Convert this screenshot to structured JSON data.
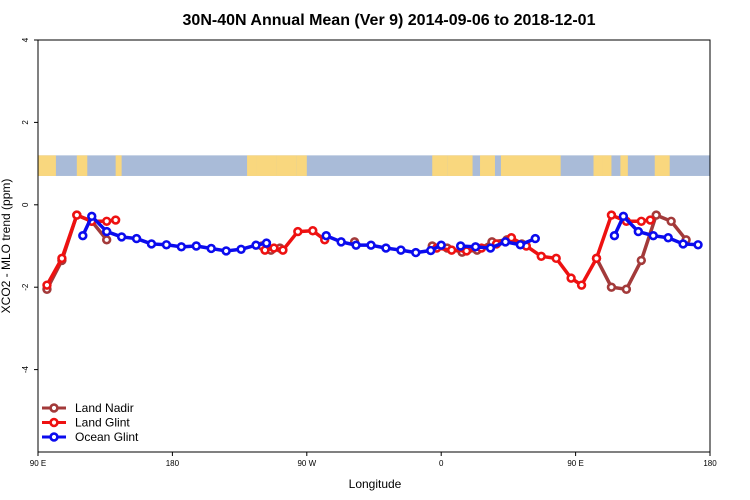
{
  "chart_data": {
    "type": "line",
    "title": "30N-40N Annual Mean (Ver 9)   2014-09-06 to 2018-12-01",
    "xlabel": "Longitude",
    "ylabel": "XCO2 - MLO trend (ppm)",
    "xlim": [
      90,
      540
    ],
    "ylim": [
      -6.0,
      4.0
    ],
    "x_ticks": [
      {
        "value": 90,
        "label": "90 E"
      },
      {
        "value": 180,
        "label": "180"
      },
      {
        "value": 270,
        "label": "90 W"
      },
      {
        "value": 360,
        "label": "0"
      },
      {
        "value": 450,
        "label": "90 E"
      },
      {
        "value": 540,
        "label": "180"
      }
    ],
    "y_ticks": [
      {
        "value": 4,
        "label": "4"
      },
      {
        "value": 2,
        "label": "2"
      },
      {
        "value": 0,
        "label": "0"
      },
      {
        "value": -2,
        "label": "-2"
      },
      {
        "value": -4,
        "label": "-4"
      }
    ],
    "grid": false,
    "legend_position": "bottom-left",
    "map_strip": {
      "y_range": [
        0.7,
        1.2
      ],
      "ocean_color": "#a9bbd8",
      "land_color": "#f9d77e"
    },
    "series": [
      {
        "name": "Land Nadir",
        "color": "#a33a3a",
        "points": [
          [
            96,
            -2.05
          ],
          [
            106,
            -1.35
          ],
          [
            116,
            -0.25
          ],
          [
            126,
            -0.4
          ],
          [
            136,
            -0.85
          ],
          [
            240,
            -1.0
          ],
          [
            246,
            -1.1
          ],
          [
            252,
            -1.05
          ],
          [
            302,
            -0.9
          ],
          [
            354,
            -1.0
          ],
          [
            364,
            -1.05
          ],
          [
            374,
            -1.15
          ],
          [
            384,
            -1.1
          ],
          [
            394,
            -0.9
          ],
          [
            404,
            -0.85
          ],
          [
            414,
            -0.95
          ],
          [
            464,
            -1.3
          ],
          [
            474,
            -2.0
          ],
          [
            484,
            -2.05
          ],
          [
            494,
            -1.35
          ],
          [
            504,
            -0.25
          ],
          [
            514,
            -0.4
          ],
          [
            524,
            -0.85
          ]
        ]
      },
      {
        "name": "Land Glint",
        "color": "#ee1111",
        "points": [
          [
            96,
            -1.95
          ],
          [
            106,
            -1.3
          ],
          [
            116,
            -0.25
          ],
          [
            126,
            -0.4
          ],
          [
            136,
            -0.4
          ],
          [
            142,
            -0.37
          ],
          [
            242,
            -1.1
          ],
          [
            248,
            -1.05
          ],
          [
            254,
            -1.1
          ],
          [
            264,
            -0.65
          ],
          [
            274,
            -0.63
          ],
          [
            282,
            -0.85
          ],
          [
            357,
            -1.05
          ],
          [
            367,
            -1.1
          ],
          [
            377,
            -1.12
          ],
          [
            387,
            -1.05
          ],
          [
            397,
            -0.95
          ],
          [
            407,
            -0.8
          ],
          [
            417,
            -1.0
          ],
          [
            427,
            -1.25
          ],
          [
            437,
            -1.3
          ],
          [
            447,
            -1.78
          ],
          [
            454,
            -1.95
          ],
          [
            464,
            -1.3
          ],
          [
            474,
            -0.25
          ],
          [
            484,
            -0.4
          ],
          [
            494,
            -0.4
          ],
          [
            500,
            -0.37
          ]
        ]
      },
      {
        "name": "Ocean Glint",
        "color": "#0b0bee",
        "points": [
          [
            120,
            -0.75
          ],
          [
            126,
            -0.28
          ],
          [
            136,
            -0.65
          ],
          [
            146,
            -0.78
          ],
          [
            156,
            -0.82
          ],
          [
            166,
            -0.95
          ],
          [
            176,
            -0.97
          ],
          [
            186,
            -1.02
          ],
          [
            196,
            -1.0
          ],
          [
            206,
            -1.06
          ],
          [
            216,
            -1.12
          ],
          [
            226,
            -1.08
          ],
          [
            236,
            -0.98
          ],
          [
            243,
            -0.93
          ],
          [
            283,
            -0.75
          ],
          [
            293,
            -0.9
          ],
          [
            303,
            -0.98
          ],
          [
            313,
            -0.98
          ],
          [
            323,
            -1.05
          ],
          [
            333,
            -1.1
          ],
          [
            343,
            -1.16
          ],
          [
            353,
            -1.11
          ],
          [
            360,
            -0.98
          ],
          [
            373,
            -1.0
          ],
          [
            383,
            -1.02
          ],
          [
            393,
            -1.05
          ],
          [
            403,
            -0.9
          ],
          [
            413,
            -0.97
          ],
          [
            423,
            -0.82
          ],
          [
            476,
            -0.75
          ],
          [
            482,
            -0.28
          ],
          [
            492,
            -0.65
          ],
          [
            502,
            -0.75
          ],
          [
            512,
            -0.8
          ],
          [
            522,
            -0.95
          ],
          [
            532,
            -0.97
          ]
        ]
      }
    ]
  }
}
